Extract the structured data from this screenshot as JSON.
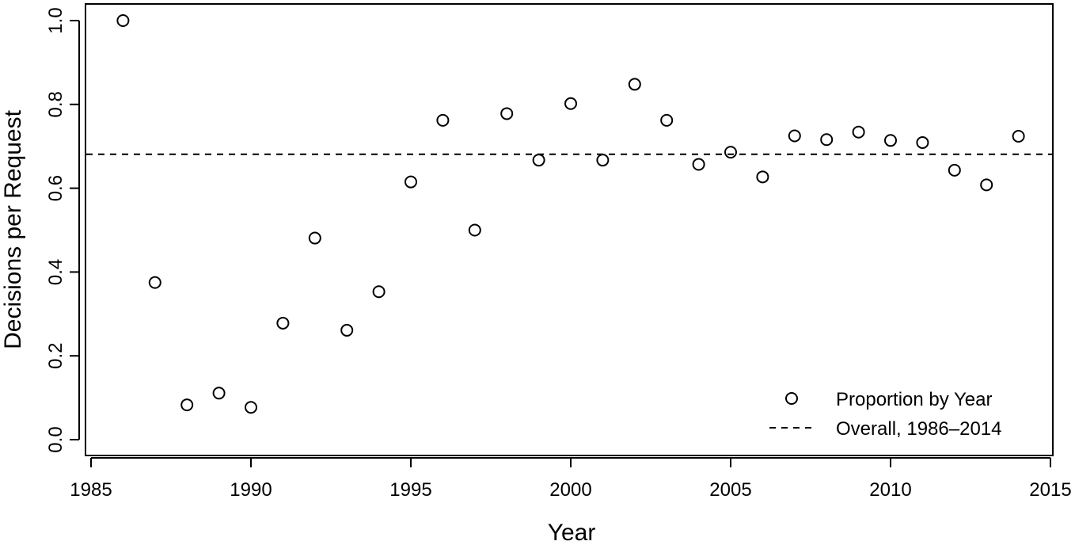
{
  "chart_data": {
    "type": "scatter",
    "title": "",
    "xlabel": "Year",
    "ylabel": "Decisions per Request",
    "xlim": [
      1985,
      2015
    ],
    "ylim": [
      0.0,
      1.0
    ],
    "xticks": [
      "1985",
      "1990",
      "1995",
      "2000",
      "2005",
      "2010",
      "2015"
    ],
    "yticks": [
      "0.0",
      "0.2",
      "0.4",
      "0.6",
      "0.8",
      "1.0"
    ],
    "grid": false,
    "legend_position": "bottom-right",
    "series": [
      {
        "name": "Proportion by Year",
        "marker": "open-circle",
        "x": [
          1986,
          1987,
          1988,
          1989,
          1990,
          1991,
          1992,
          1993,
          1994,
          1995,
          1996,
          1997,
          1998,
          1999,
          2000,
          2001,
          2002,
          2003,
          2004,
          2005,
          2006,
          2007,
          2008,
          2009,
          2010,
          2011,
          2012,
          2013,
          2014
        ],
        "y": [
          1.0,
          0.375,
          0.083,
          0.111,
          0.077,
          0.278,
          0.481,
          0.261,
          0.353,
          0.615,
          0.762,
          0.5,
          0.778,
          0.667,
          0.802,
          0.667,
          0.848,
          0.762,
          0.657,
          0.686,
          0.627,
          0.725,
          0.716,
          0.734,
          0.714,
          0.709,
          0.643,
          0.608,
          0.724
        ]
      },
      {
        "name": "Overall, 1986–2014",
        "line_style": "dashed",
        "y": 0.681
      }
    ]
  }
}
